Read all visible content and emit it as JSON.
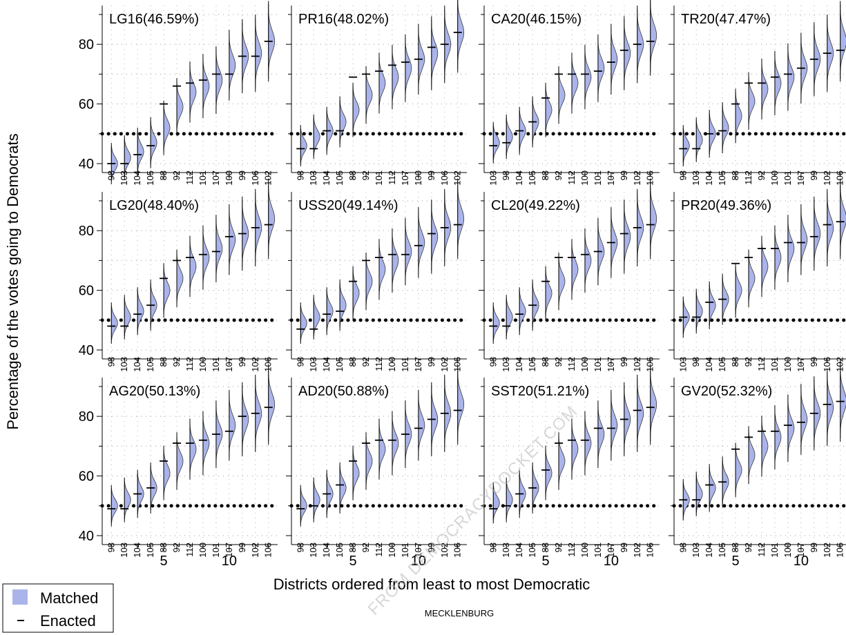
{
  "chart_data": {
    "type": "violin",
    "ylabel": "Percentage of the votes going to Democrats",
    "xlabel": "Districts ordered from least to most Democratic",
    "subtitle": "MECKLENBURG",
    "watermark": "FROM DEMOCRACYDOCKET.COM",
    "ylim": [
      37,
      93
    ],
    "yticks": [
      40,
      60,
      80
    ],
    "xticks": [
      5,
      10
    ],
    "xlim": [
      0.3,
      13.7
    ],
    "reference_line": 50,
    "grid": true,
    "legend": {
      "position": "bottom-left",
      "entries": [
        {
          "label": "Matched",
          "color": "#aab4ea"
        },
        {
          "label": "Enacted",
          "color": "#000000"
        }
      ]
    },
    "panels": [
      {
        "title": "LG16(46.59%)",
        "districts": [
          "98",
          "103",
          "104",
          "105",
          "88",
          "92",
          "112",
          "101",
          "107",
          "100",
          "99",
          "106",
          "102"
        ],
        "matched": [
          40,
          42,
          44,
          47,
          52,
          59,
          64,
          66,
          68,
          73,
          76,
          77,
          81
        ],
        "enacted": [
          40,
          40,
          43,
          46,
          60,
          66,
          67,
          68,
          70,
          70,
          76,
          76,
          81
        ]
      },
      {
        "title": "PR16(48.02%)",
        "districts": [
          "98",
          "103",
          "104",
          "105",
          "88",
          "92",
          "101",
          "112",
          "107",
          "100",
          "99",
          "106",
          "102"
        ],
        "matched": [
          46,
          49,
          51,
          54,
          58,
          63,
          67,
          69,
          72,
          75,
          77,
          80,
          84
        ],
        "enacted": [
          45,
          45,
          51,
          51,
          69,
          70,
          71,
          73,
          74,
          75,
          79,
          80,
          84
        ]
      },
      {
        "title": "CA20(46.15%)",
        "districts": [
          "103",
          "98",
          "104",
          "105",
          "88",
          "92",
          "112",
          "100",
          "101",
          "107",
          "99",
          "102",
          "106"
        ],
        "matched": [
          47,
          49,
          51,
          54,
          58,
          63,
          67,
          69,
          72,
          75,
          77,
          80,
          83
        ],
        "enacted": [
          46,
          47,
          51,
          54,
          62,
          70,
          70,
          70,
          71,
          74,
          78,
          80,
          81
        ]
      },
      {
        "title": "TR20(47.47%)",
        "districts": [
          "98",
          "103",
          "104",
          "105",
          "88",
          "112",
          "92",
          "100",
          "101",
          "107",
          "99",
          "102",
          "106"
        ],
        "matched": [
          46,
          48,
          50,
          52,
          56,
          61,
          65,
          67,
          69,
          72,
          75,
          77,
          81
        ],
        "enacted": [
          45,
          45,
          50,
          51,
          60,
          67,
          67,
          69,
          70,
          72,
          75,
          77,
          78
        ]
      },
      {
        "title": "LG20(48.40%)",
        "districts": [
          "98",
          "103",
          "104",
          "105",
          "88",
          "92",
          "112",
          "100",
          "101",
          "107",
          "99",
          "102",
          "106"
        ],
        "matched": [
          49,
          51,
          53,
          55,
          60,
          64,
          68,
          71,
          74,
          77,
          79,
          81,
          84
        ],
        "enacted": [
          48,
          48,
          52,
          55,
          64,
          70,
          71,
          72,
          73,
          78,
          79,
          81,
          82
        ]
      },
      {
        "title": "USS20(49.14%)",
        "districts": [
          "98",
          "103",
          "104",
          "105",
          "88",
          "92",
          "112",
          "100",
          "101",
          "107",
          "99",
          "102",
          "106"
        ],
        "matched": [
          49,
          51,
          53,
          55,
          59,
          63,
          67,
          70,
          73,
          76,
          78,
          81,
          84
        ],
        "enacted": [
          47,
          47,
          52,
          53,
          63,
          70,
          71,
          72,
          72,
          75,
          79,
          81,
          82
        ]
      },
      {
        "title": "CL20(49.22%)",
        "districts": [
          "98",
          "103",
          "104",
          "105",
          "88",
          "92",
          "112",
          "100",
          "101",
          "107",
          "99",
          "102",
          "106"
        ],
        "matched": [
          49,
          51,
          53,
          55,
          59,
          63,
          67,
          70,
          73,
          76,
          78,
          81,
          84
        ],
        "enacted": [
          48,
          48,
          52,
          55,
          63,
          71,
          71,
          72,
          73,
          76,
          79,
          81,
          82
        ]
      },
      {
        "title": "PR20(49.36%)",
        "districts": [
          "103",
          "98",
          "104",
          "105",
          "88",
          "92",
          "112",
          "101",
          "100",
          "107",
          "99",
          "106",
          "102"
        ],
        "matched": [
          51,
          53,
          55,
          57,
          60,
          64,
          68,
          71,
          74,
          77,
          79,
          81,
          84
        ],
        "enacted": [
          51,
          51,
          56,
          57,
          69,
          71,
          74,
          74,
          76,
          76,
          78,
          82,
          83
        ]
      },
      {
        "title": "AG20(50.13%)",
        "districts": [
          "98",
          "103",
          "104",
          "105",
          "88",
          "92",
          "112",
          "100",
          "101",
          "107",
          "99",
          "102",
          "106"
        ],
        "matched": [
          50,
          52,
          54,
          56,
          61,
          65,
          69,
          71,
          74,
          77,
          79,
          81,
          84
        ],
        "enacted": [
          49,
          49,
          54,
          56,
          65,
          71,
          71,
          72,
          74,
          75,
          80,
          81,
          83
        ]
      },
      {
        "title": "AD20(50.88%)",
        "districts": [
          "98",
          "103",
          "104",
          "105",
          "88",
          "92",
          "112",
          "100",
          "101",
          "107",
          "99",
          "102",
          "106"
        ],
        "matched": [
          50,
          52,
          54,
          56,
          61,
          65,
          69,
          71,
          74,
          77,
          79,
          81,
          84
        ],
        "enacted": [
          49,
          50,
          54,
          57,
          65,
          71,
          72,
          72,
          74,
          76,
          79,
          81,
          82
        ]
      },
      {
        "title": "SST20(51.21%)",
        "districts": [
          "98",
          "103",
          "104",
          "105",
          "88",
          "92",
          "112",
          "100",
          "101",
          "107",
          "99",
          "102",
          "106"
        ],
        "matched": [
          51,
          52,
          54,
          56,
          61,
          65,
          69,
          71,
          74,
          77,
          79,
          81,
          84
        ],
        "enacted": [
          49,
          50,
          54,
          56,
          62,
          71,
          72,
          72,
          76,
          76,
          79,
          82,
          83
        ]
      },
      {
        "title": "GV20(52.32%)",
        "districts": [
          "98",
          "103",
          "104",
          "105",
          "88",
          "92",
          "112",
          "101",
          "100",
          "107",
          "99",
          "102",
          "106"
        ],
        "matched": [
          52,
          54,
          56,
          58,
          62,
          67,
          70,
          73,
          76,
          79,
          81,
          83,
          85
        ],
        "enacted": [
          52,
          52,
          57,
          58,
          69,
          73,
          75,
          75,
          77,
          78,
          81,
          84,
          85
        ]
      }
    ]
  }
}
